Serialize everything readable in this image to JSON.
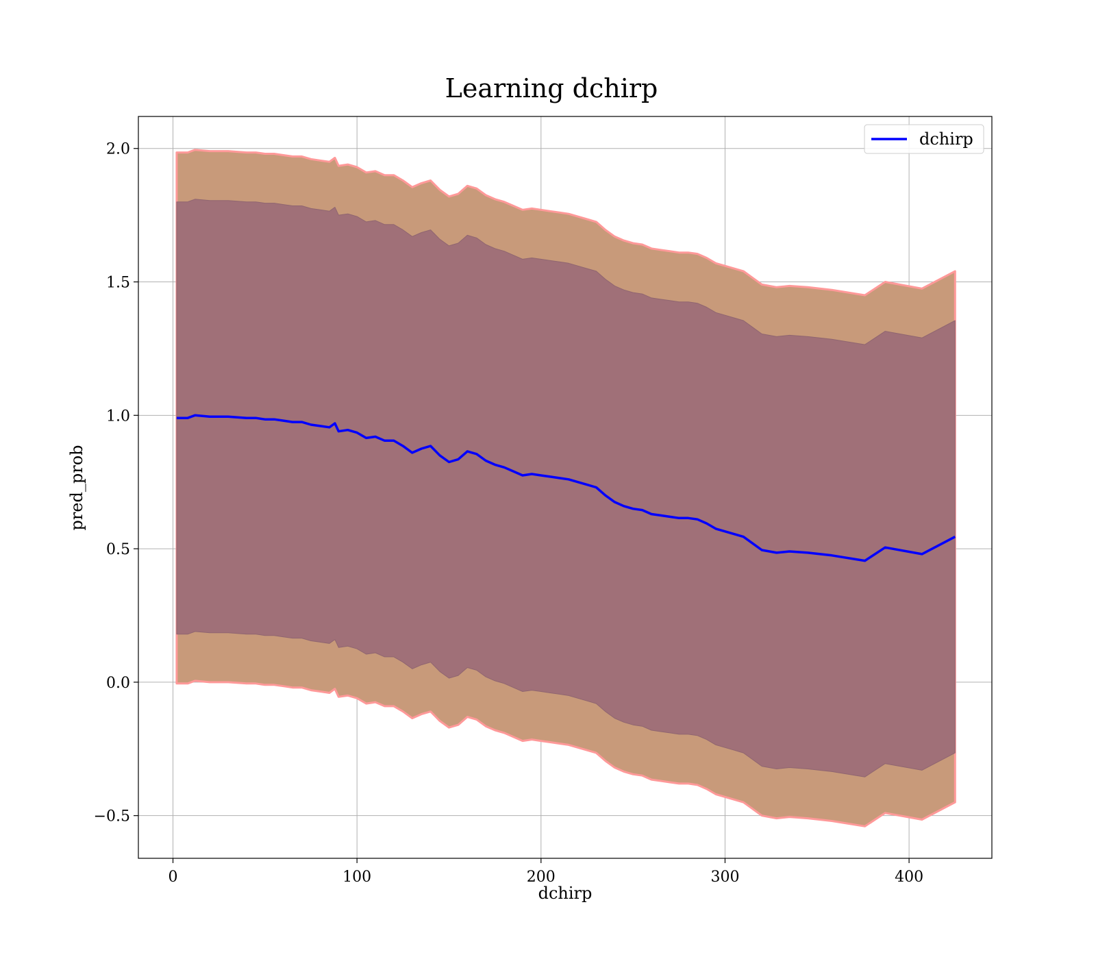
{
  "chart_data": {
    "type": "line",
    "title": "Learning dchirp",
    "xlabel": "dchirp",
    "ylabel": "pred_prob",
    "xlim": [
      -18.8,
      445
    ],
    "ylim": [
      -0.66,
      2.12
    ],
    "xticks": [
      0,
      100,
      200,
      300,
      400
    ],
    "xtick_labels": [
      "0",
      "100",
      "200",
      "300",
      "400"
    ],
    "yticks": [
      -0.5,
      0.0,
      0.5,
      1.0,
      1.5,
      2.0
    ],
    "ytick_labels": [
      "−0.5",
      "0.0",
      "0.5",
      "1.0",
      "1.5",
      "2.0"
    ],
    "grid": true,
    "legend": {
      "position": "top-right",
      "entries": [
        "dchirp"
      ]
    },
    "series": [
      {
        "name": "dchirp",
        "color": "#0000ff",
        "x": [
          2,
          8,
          12,
          20,
          30,
          40,
          45,
          50,
          55,
          60,
          65,
          70,
          75,
          80,
          85,
          88,
          90,
          95,
          100,
          105,
          110,
          115,
          120,
          125,
          130,
          135,
          140,
          145,
          150,
          155,
          160,
          165,
          170,
          175,
          180,
          185,
          190,
          195,
          200,
          205,
          210,
          215,
          220,
          225,
          230,
          235,
          240,
          245,
          250,
          255,
          260,
          265,
          270,
          275,
          280,
          285,
          290,
          295,
          300,
          305,
          310,
          315,
          320,
          328,
          335,
          345,
          358,
          376,
          387,
          407,
          425
        ],
        "y": [
          0.99,
          0.99,
          1.0,
          0.995,
          0.995,
          0.99,
          0.99,
          0.985,
          0.985,
          0.98,
          0.975,
          0.975,
          0.965,
          0.96,
          0.955,
          0.97,
          0.94,
          0.945,
          0.935,
          0.915,
          0.92,
          0.905,
          0.905,
          0.885,
          0.86,
          0.875,
          0.885,
          0.85,
          0.825,
          0.835,
          0.865,
          0.855,
          0.83,
          0.815,
          0.805,
          0.79,
          0.775,
          0.78,
          0.775,
          0.77,
          0.765,
          0.76,
          0.75,
          0.74,
          0.73,
          0.7,
          0.675,
          0.66,
          0.65,
          0.645,
          0.63,
          0.625,
          0.62,
          0.615,
          0.615,
          0.61,
          0.595,
          0.575,
          0.565,
          0.555,
          0.545,
          0.52,
          0.495,
          0.485,
          0.49,
          0.485,
          0.475,
          0.455,
          0.505,
          0.48,
          0.545
        ]
      }
    ],
    "bands": [
      {
        "offset": 0.81,
        "color": "#b5837f",
        "edge": "#ff9999"
      },
      {
        "offset": 0.995,
        "color": "#c89a7a",
        "edge": "#ff9999"
      }
    ]
  }
}
